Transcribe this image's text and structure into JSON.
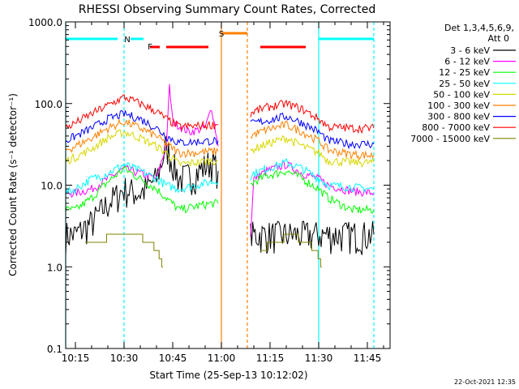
{
  "chart_data": {
    "type": "line",
    "title": "RHESSI Observing Summary Count Rates, Corrected",
    "xlabel": "Start Time (25-Sep-13 10:12:02)",
    "ylabel": "Corrected Count Rate (s⁻¹ detector⁻¹)",
    "y_scale": "log",
    "ylim": [
      0.1,
      1000.0
    ],
    "xlim": [
      "10:12",
      "11:52"
    ],
    "x_ticks": [
      "10:15",
      "10:30",
      "10:45",
      "11:00",
      "11:15",
      "11:30",
      "11:45"
    ],
    "y_ticks": [
      "0.1",
      "1.0",
      "10.0",
      "100.0",
      "1000.0"
    ],
    "legend": {
      "placement": "right",
      "header": [
        "Det 1,3,4,5,6,9,",
        "Att 0"
      ],
      "entries": [
        {
          "label": "3 - 6 keV",
          "color": "#000000"
        },
        {
          "label": "6 - 12 keV",
          "color": "#ff00ff"
        },
        {
          "label": "12 - 25 keV",
          "color": "#00ff00"
        },
        {
          "label": "25 - 50 keV",
          "color": "#00ffff"
        },
        {
          "label": "50 - 100 keV",
          "color": "#d8d800"
        },
        {
          "label": "100 - 300 keV",
          "color": "#ff8000"
        },
        {
          "label": "300 - 800 keV",
          "color": "#0000ff"
        },
        {
          "label": "800 - 7000 keV",
          "color": "#ff0000"
        },
        {
          "label": "7000 - 15000 keV",
          "color": "#808000"
        }
      ]
    },
    "flags": [
      {
        "label": "N",
        "color": "#00ffff"
      },
      {
        "label": "F",
        "color": "#ff0000"
      },
      {
        "label": "S",
        "color": "#ff8000"
      }
    ],
    "series": [
      {
        "name": "3 - 6 keV",
        "color": "#000000",
        "x": [
          "10:12",
          "10:15",
          "10:20",
          "10:25",
          "10:30",
          "10:35",
          "10:40",
          "10:43",
          "10:47",
          "10:52",
          "10:57",
          "10:59"
        ],
        "y": [
          2.5,
          2.5,
          3.5,
          6,
          9,
          8,
          12,
          30,
          12,
          14,
          20,
          15
        ]
      },
      {
        "name": "3 - 6 keV",
        "color": "#000000",
        "x": [
          "11:09",
          "11:10",
          "11:14",
          "11:20",
          "11:25",
          "11:30",
          "11:33",
          "11:40",
          "11:47"
        ],
        "y": [
          2.5,
          2.5,
          2.5,
          2.5,
          2.5,
          2.5,
          2.5,
          2.5,
          2.5
        ]
      },
      {
        "name": "6 - 12 keV",
        "color": "#ff00ff",
        "x": [
          "10:12",
          "10:15",
          "10:20",
          "10:25",
          "10:30",
          "10:35",
          "10:40",
          "10:43",
          "10:44",
          "10:45",
          "10:50",
          "10:55",
          "10:57",
          "10:59"
        ],
        "y": [
          8,
          8,
          9,
          12,
          16,
          14,
          12,
          30,
          160,
          60,
          45,
          50,
          90,
          30
        ]
      },
      {
        "name": "6 - 12 keV",
        "color": "#ff00ff",
        "x": [
          "11:09",
          "11:10",
          "11:14",
          "11:20",
          "11:25",
          "11:30",
          "11:33",
          "11:40",
          "11:47"
        ],
        "y": [
          2.5,
          12,
          15,
          18,
          14,
          12,
          10,
          8.5,
          8
        ]
      },
      {
        "name": "12 - 25 keV",
        "color": "#00ff00",
        "x": [
          "10:12",
          "10:15",
          "10:20",
          "10:25",
          "10:30",
          "10:35",
          "10:40",
          "10:43",
          "10:47",
          "10:52",
          "10:57",
          "10:59"
        ],
        "y": [
          5,
          5,
          7,
          11,
          16,
          12,
          9,
          7,
          5,
          5.5,
          6,
          6
        ]
      },
      {
        "name": "12 - 25 keV",
        "color": "#00ff00",
        "x": [
          "11:09",
          "11:10",
          "11:14",
          "11:20",
          "11:25",
          "11:30",
          "11:33",
          "11:40",
          "11:47"
        ],
        "y": [
          10,
          11,
          13,
          15,
          12,
          9,
          7,
          5,
          5
        ]
      },
      {
        "name": "25 - 50 keV",
        "color": "#00ffff",
        "x": [
          "10:12",
          "10:15",
          "10:20",
          "10:25",
          "10:30",
          "10:35",
          "10:40",
          "10:43",
          "10:47",
          "10:52",
          "10:57",
          "10:59"
        ],
        "y": [
          8,
          9,
          12,
          14,
          18,
          15,
          12,
          10,
          9,
          10,
          11,
          11
        ]
      },
      {
        "name": "25 - 50 keV",
        "color": "#00ffff",
        "x": [
          "11:09",
          "11:10",
          "11:14",
          "11:20",
          "11:25",
          "11:30",
          "11:33",
          "11:40",
          "11:47"
        ],
        "y": [
          13,
          14,
          16,
          19,
          16,
          12,
          10,
          9.5,
          9
        ]
      },
      {
        "name": "50 - 100 keV",
        "color": "#d8d800",
        "x": [
          "10:12",
          "10:15",
          "10:20",
          "10:25",
          "10:30",
          "10:35",
          "10:40",
          "10:43",
          "10:47",
          "10:52",
          "10:57",
          "10:59"
        ],
        "y": [
          20,
          22,
          28,
          38,
          45,
          38,
          30,
          25,
          18,
          19,
          20,
          20
        ]
      },
      {
        "name": "50 - 100 keV",
        "color": "#d8d800",
        "x": [
          "11:09",
          "11:10",
          "11:14",
          "11:20",
          "11:25",
          "11:30",
          "11:33",
          "11:40",
          "11:47"
        ],
        "y": [
          25,
          28,
          32,
          38,
          30,
          25,
          20,
          19,
          19
        ]
      },
      {
        "name": "100 - 300 keV",
        "color": "#ff8000",
        "x": [
          "10:12",
          "10:15",
          "10:20",
          "10:25",
          "10:30",
          "10:35",
          "10:40",
          "10:43",
          "10:47",
          "10:52",
          "10:57",
          "10:59"
        ],
        "y": [
          27,
          30,
          38,
          50,
          60,
          50,
          40,
          32,
          25,
          25,
          26,
          26
        ]
      },
      {
        "name": "100 - 300 keV",
        "color": "#ff8000",
        "x": [
          "11:09",
          "11:10",
          "11:14",
          "11:20",
          "11:25",
          "11:30",
          "11:33",
          "11:40",
          "11:47"
        ],
        "y": [
          40,
          42,
          48,
          55,
          45,
          35,
          27,
          24,
          23
        ]
      },
      {
        "name": "300 - 800 keV",
        "color": "#0000ff",
        "x": [
          "10:12",
          "10:15",
          "10:20",
          "10:25",
          "10:30",
          "10:35",
          "10:40",
          "10:43",
          "10:47",
          "10:52",
          "10:57",
          "10:59"
        ],
        "y": [
          35,
          40,
          50,
          65,
          75,
          65,
          50,
          40,
          33,
          34,
          35,
          35
        ]
      },
      {
        "name": "300 - 800 keV",
        "color": "#0000ff",
        "x": [
          "11:09",
          "11:10",
          "11:14",
          "11:20",
          "11:25",
          "11:30",
          "11:33",
          "11:40",
          "11:47"
        ],
        "y": [
          55,
          58,
          62,
          70,
          58,
          45,
          35,
          32,
          32
        ]
      },
      {
        "name": "800 - 7000 keV",
        "color": "#ff0000",
        "x": [
          "10:12",
          "10:15",
          "10:20",
          "10:25",
          "10:30",
          "10:35",
          "10:40",
          "10:43",
          "10:47",
          "10:52",
          "10:57",
          "10:59"
        ],
        "y": [
          50,
          58,
          75,
          95,
          120,
          100,
          80,
          65,
          52,
          53,
          55,
          55
        ]
      },
      {
        "name": "800 - 7000 keV",
        "color": "#ff0000",
        "x": [
          "11:09",
          "11:10",
          "11:14",
          "11:20",
          "11:25",
          "11:30",
          "11:33",
          "11:40",
          "11:47"
        ],
        "y": [
          75,
          80,
          90,
          100,
          85,
          65,
          52,
          50,
          50
        ]
      },
      {
        "name": "7000 - 15000 keV",
        "color": "#808000",
        "x": [
          "10:18",
          "10:22",
          "10:25",
          "10:28",
          "10:33",
          "10:35",
          "10:38",
          "10:40",
          "10:42"
        ],
        "y": [
          1.8,
          2.0,
          2.3,
          2.7,
          2.7,
          2.3,
          2.0,
          1.6,
          1.0
        ]
      },
      {
        "name": "7000 - 15000 keV",
        "color": "#808000",
        "x": [
          "11:12",
          "11:16",
          "11:20",
          "11:23",
          "11:26",
          "11:29",
          "11:31"
        ],
        "y": [
          1.6,
          2.0,
          2.3,
          2.3,
          2.0,
          1.6,
          1.0
        ]
      }
    ]
  },
  "footer_date": "22-Oct-2021 12:35"
}
